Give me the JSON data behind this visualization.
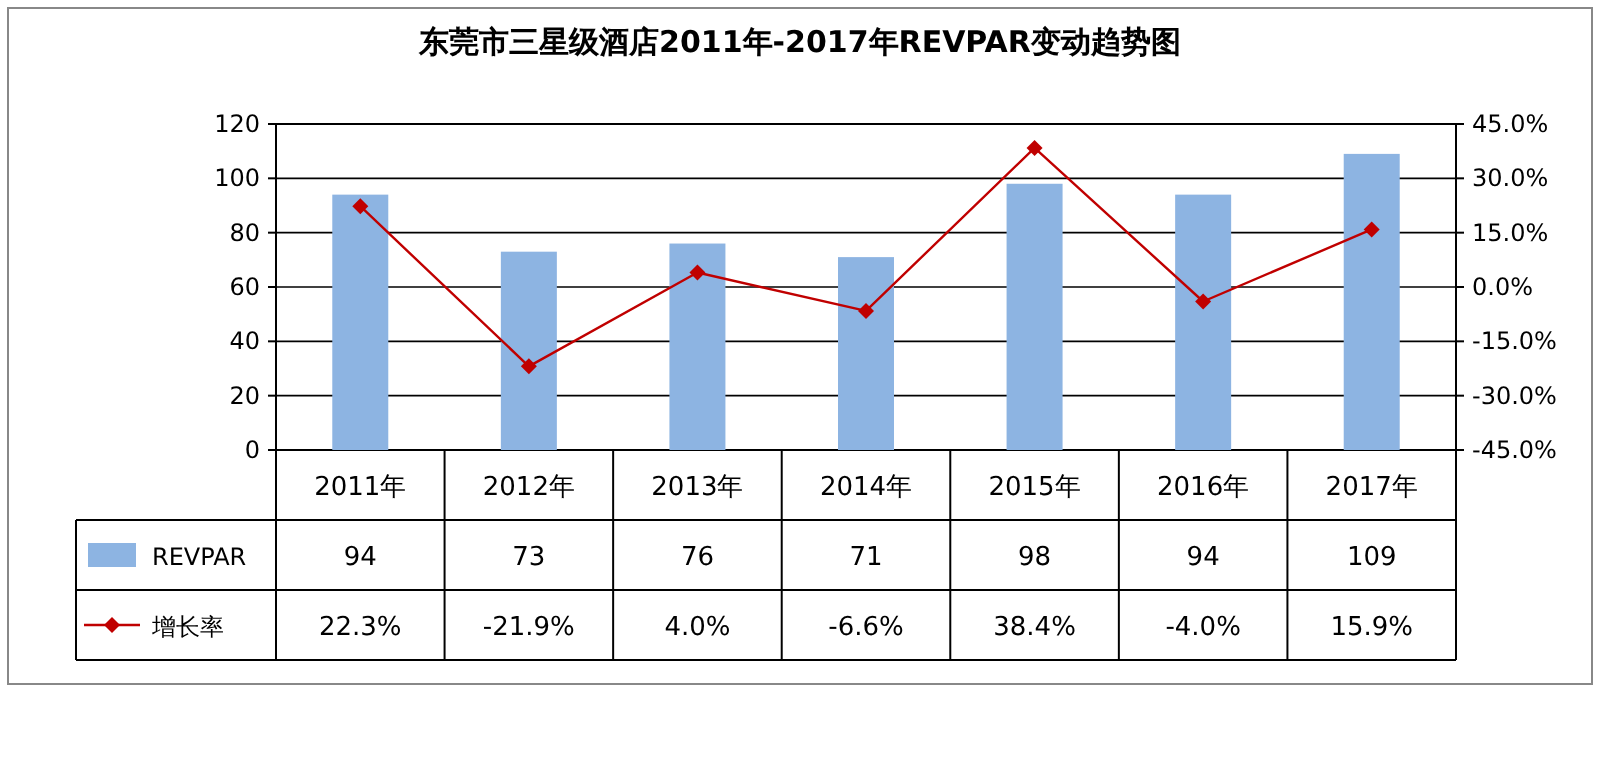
{
  "chart_data": {
    "type": "bar",
    "title": "东莞市三星级酒店2011年-2017年REVPAR变动趋势图",
    "categories": [
      "2011年",
      "2012年",
      "2013年",
      "2014年",
      "2015年",
      "2016年",
      "2017年"
    ],
    "series": [
      {
        "name": "REVPAR",
        "color": "#8db4e2",
        "values": [
          94,
          73,
          76,
          71,
          98,
          94,
          109
        ],
        "value_labels": [
          "94",
          "73",
          "76",
          "71",
          "98",
          "94",
          "109"
        ]
      },
      {
        "name": "增长率",
        "type": "line",
        "axis": "y2",
        "color": "#c00000",
        "marker": "diamond",
        "values": [
          22.3,
          -21.9,
          4.0,
          -6.6,
          38.4,
          -4.0,
          15.9
        ],
        "value_labels": [
          "22.3%",
          "-21.9%",
          "4.0%",
          "-6.6%",
          "38.4%",
          "-4.0%",
          "15.9%"
        ]
      }
    ],
    "ylim": [
      0,
      120
    ],
    "yticks": [
      0,
      20,
      40,
      60,
      80,
      100,
      120
    ],
    "y2lim": [
      -45,
      45
    ],
    "y2ticks": [
      {
        "value": -45,
        "label": "-45.0%"
      },
      {
        "value": -30,
        "label": "-30.0%"
      },
      {
        "value": -15,
        "label": "-15.0%"
      },
      {
        "value": 0,
        "label": "0.0%"
      },
      {
        "value": 15,
        "label": "15.0%"
      },
      {
        "value": 30,
        "label": "30.0%"
      },
      {
        "value": 45,
        "label": "45.0%"
      }
    ],
    "grid": "y",
    "legend": "bottom"
  }
}
